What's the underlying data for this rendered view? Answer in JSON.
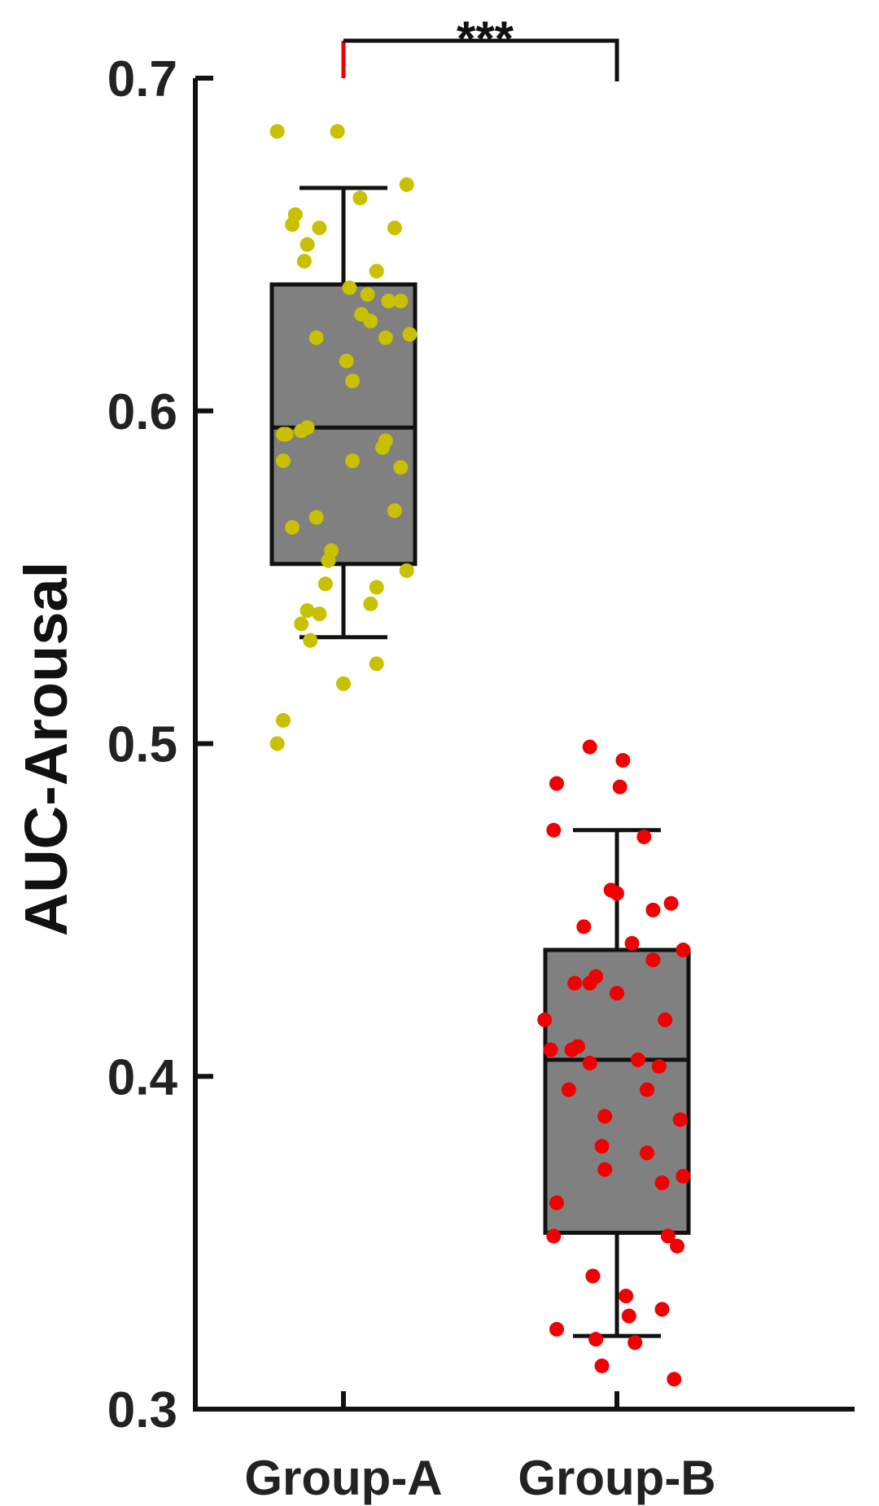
{
  "chart_data": {
    "type": "box",
    "ylabel": "AUC-Arousal",
    "ylim": [
      0.3,
      0.7
    ],
    "yticks": [
      "0.3",
      "0.4",
      "0.5",
      "0.6",
      "0.7"
    ],
    "categories": [
      "Group-A",
      "Group-B"
    ],
    "significance": {
      "label": "***",
      "between": [
        "Group-A",
        "Group-B"
      ]
    },
    "box_fill": "#808080",
    "groups": [
      {
        "name": "Group-A",
        "point_color": "#C8C000",
        "whisker_low": 0.532,
        "q1": 0.554,
        "median": 0.595,
        "q3": 0.638,
        "whisker_high": 0.667,
        "points": [
          [
            -0.22,
            0.684
          ],
          [
            0.055,
            0.664
          ],
          [
            0.21,
            0.668
          ],
          [
            -0.02,
            0.684
          ],
          [
            -0.17,
            0.656
          ],
          [
            -0.16,
            0.659
          ],
          [
            -0.08,
            0.655
          ],
          [
            -0.12,
            0.65
          ],
          [
            0.17,
            0.655
          ],
          [
            -0.13,
            0.645
          ],
          [
            0.11,
            0.642
          ],
          [
            0.02,
            0.637
          ],
          [
            0.08,
            0.635
          ],
          [
            0.15,
            0.633
          ],
          [
            0.19,
            0.633
          ],
          [
            0.06,
            0.629
          ],
          [
            0.09,
            0.627
          ],
          [
            -0.09,
            0.622
          ],
          [
            0.14,
            0.622
          ],
          [
            0.22,
            0.623
          ],
          [
            0.01,
            0.615
          ],
          [
            0.03,
            0.609
          ],
          [
            -0.2,
            0.593
          ],
          [
            -0.19,
            0.593
          ],
          [
            -0.12,
            0.595
          ],
          [
            -0.14,
            0.594
          ],
          [
            0.14,
            0.591
          ],
          [
            0.13,
            0.589
          ],
          [
            0.03,
            0.585
          ],
          [
            -0.2,
            0.585
          ],
          [
            0.19,
            0.583
          ],
          [
            0.17,
            0.57
          ],
          [
            -0.17,
            0.565
          ],
          [
            -0.09,
            0.568
          ],
          [
            -0.04,
            0.558
          ],
          [
            -0.05,
            0.555
          ],
          [
            0.21,
            0.552
          ],
          [
            -0.06,
            0.548
          ],
          [
            0.11,
            0.547
          ],
          [
            0.09,
            0.542
          ],
          [
            -0.08,
            0.539
          ],
          [
            -0.12,
            0.54
          ],
          [
            -0.14,
            0.536
          ],
          [
            -0.11,
            0.531
          ],
          [
            0.0,
            0.518
          ],
          [
            0.11,
            0.524
          ],
          [
            -0.2,
            0.507
          ],
          [
            -0.22,
            0.5
          ]
        ]
      },
      {
        "name": "Group-B",
        "point_color": "#F00000",
        "whisker_low": 0.322,
        "q1": 0.353,
        "median": 0.405,
        "q3": 0.438,
        "whisker_high": 0.474,
        "points": [
          [
            -0.09,
            0.499
          ],
          [
            0.02,
            0.495
          ],
          [
            -0.2,
            0.488
          ],
          [
            0.01,
            0.487
          ],
          [
            -0.21,
            0.474
          ],
          [
            0.09,
            0.472
          ],
          [
            -0.02,
            0.456
          ],
          [
            0.0,
            0.455
          ],
          [
            0.18,
            0.452
          ],
          [
            -0.11,
            0.445
          ],
          [
            0.12,
            0.45
          ],
          [
            -0.07,
            0.43
          ],
          [
            -0.09,
            0.428
          ],
          [
            -0.14,
            0.428
          ],
          [
            0.05,
            0.44
          ],
          [
            0.22,
            0.438
          ],
          [
            0.12,
            0.435
          ],
          [
            0.0,
            0.425
          ],
          [
            -0.24,
            0.417
          ],
          [
            0.16,
            0.417
          ],
          [
            -0.22,
            0.408
          ],
          [
            -0.15,
            0.408
          ],
          [
            -0.13,
            0.409
          ],
          [
            -0.09,
            0.404
          ],
          [
            0.07,
            0.405
          ],
          [
            0.14,
            0.403
          ],
          [
            -0.16,
            0.396
          ],
          [
            0.1,
            0.396
          ],
          [
            -0.04,
            0.388
          ],
          [
            0.21,
            0.387
          ],
          [
            -0.05,
            0.379
          ],
          [
            0.1,
            0.377
          ],
          [
            -0.04,
            0.372
          ],
          [
            0.15,
            0.368
          ],
          [
            0.22,
            0.37
          ],
          [
            -0.2,
            0.362
          ],
          [
            -0.21,
            0.352
          ],
          [
            0.17,
            0.352
          ],
          [
            0.2,
            0.349
          ],
          [
            -0.08,
            0.34
          ],
          [
            0.03,
            0.334
          ],
          [
            0.15,
            0.33
          ],
          [
            -0.2,
            0.324
          ],
          [
            0.04,
            0.328
          ],
          [
            -0.07,
            0.321
          ],
          [
            -0.05,
            0.313
          ],
          [
            0.06,
            0.32
          ],
          [
            0.19,
            0.309
          ]
        ]
      }
    ]
  }
}
